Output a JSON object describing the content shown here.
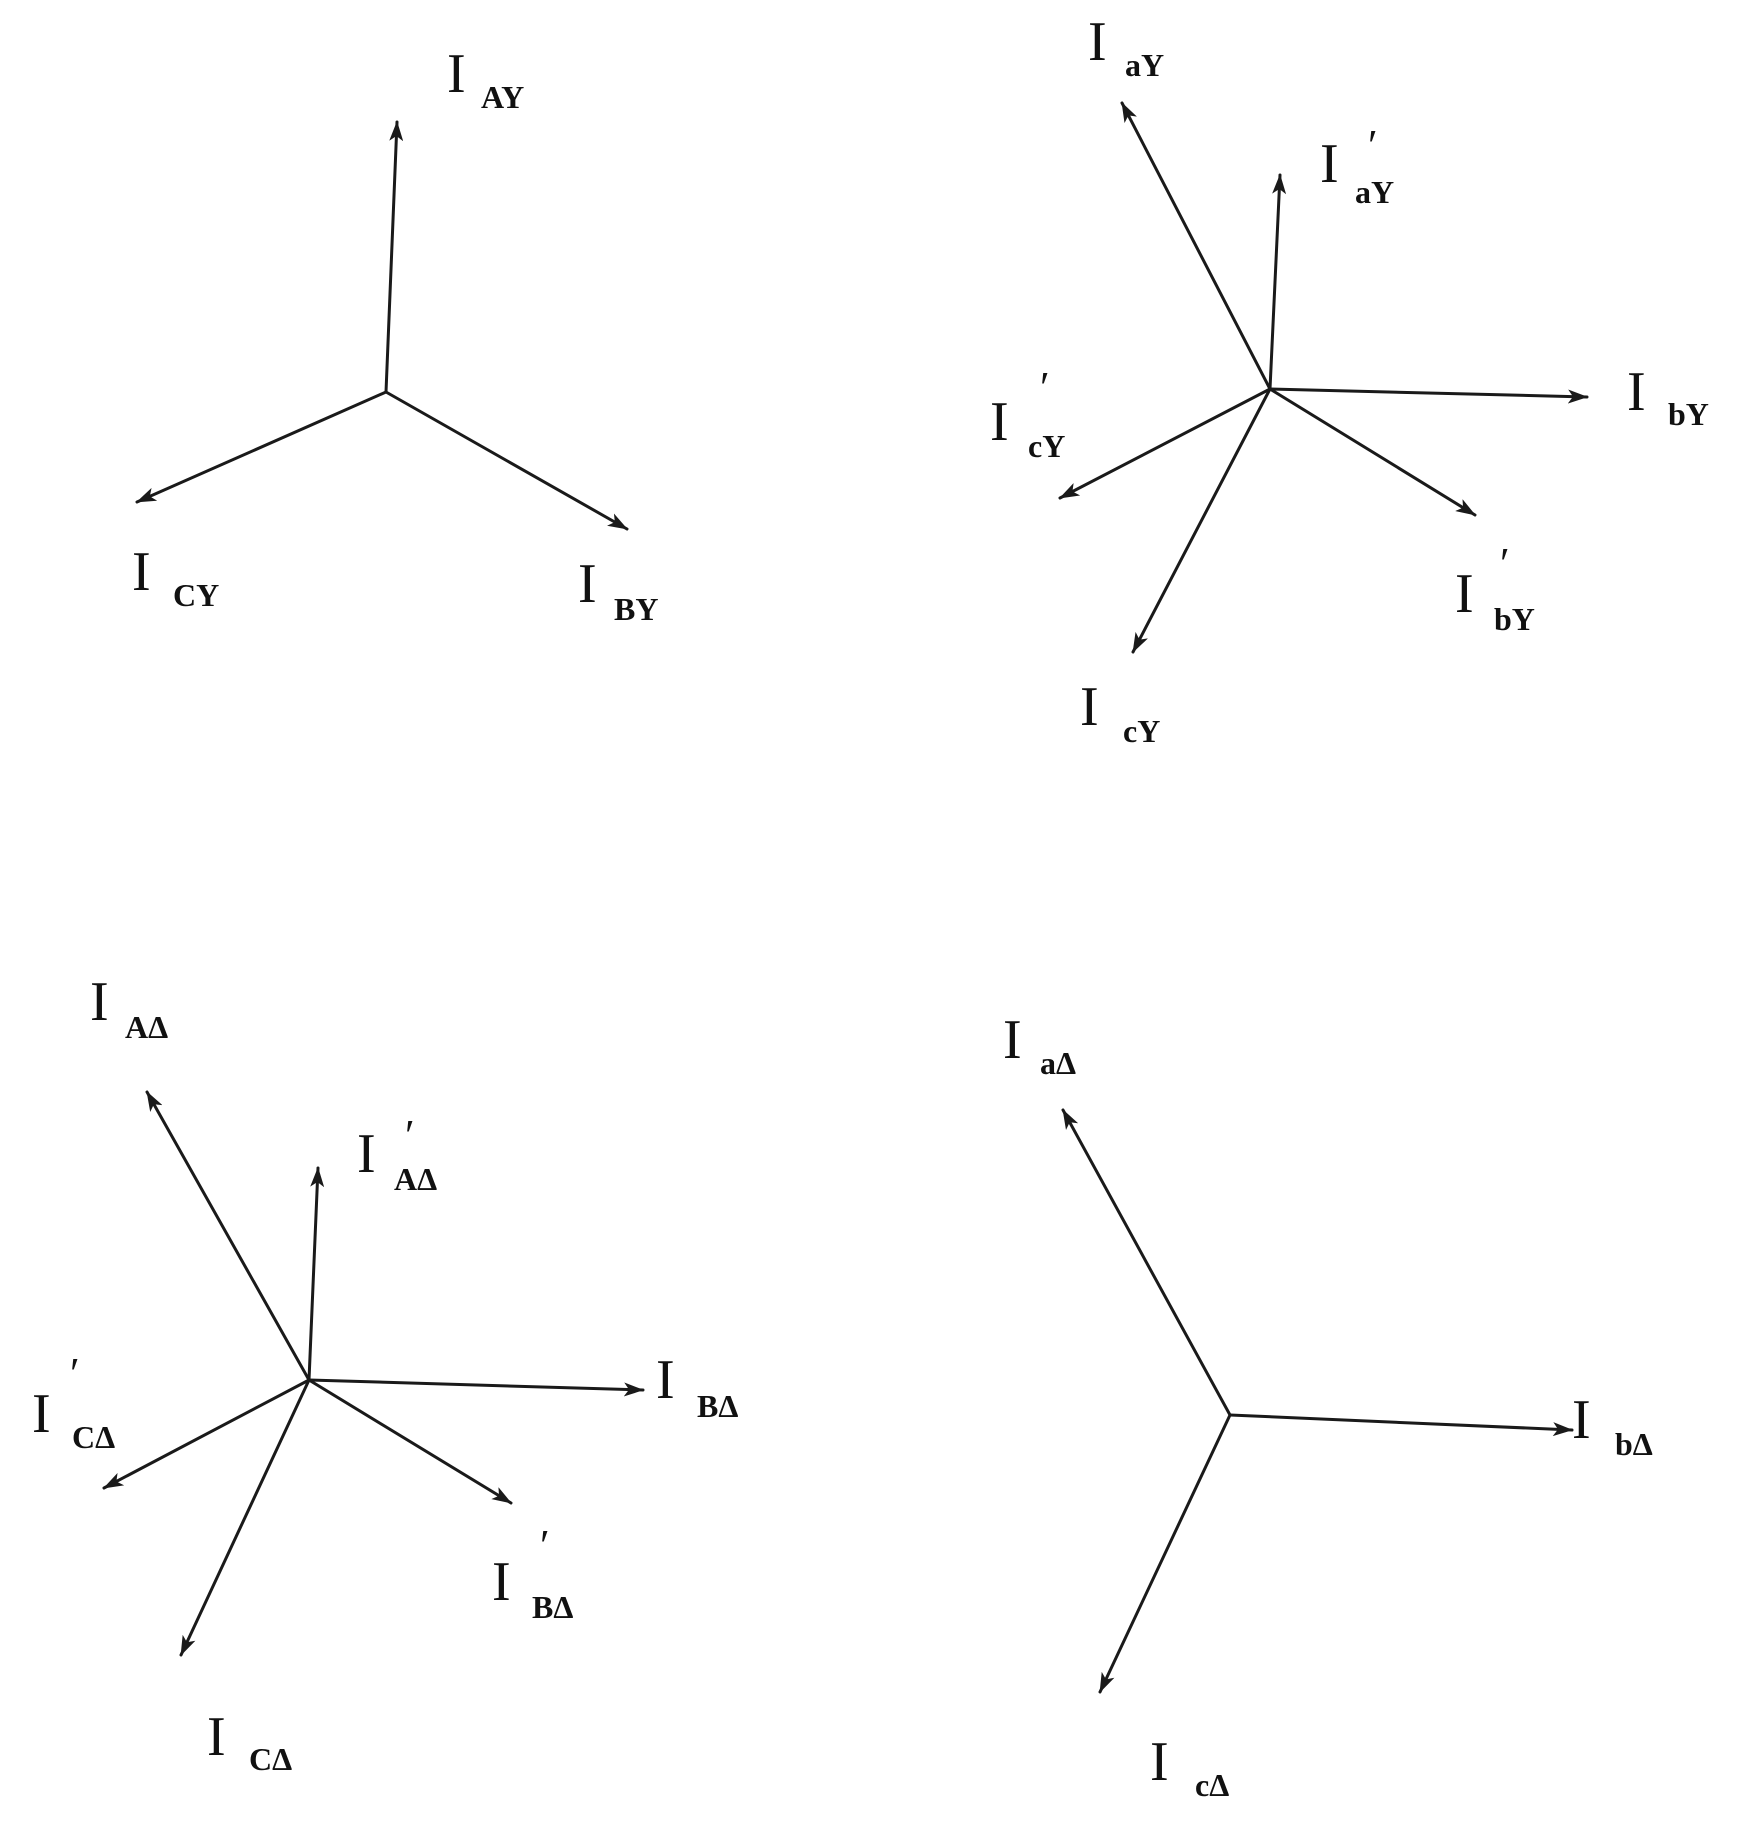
{
  "colors": {
    "ink": "#1a1a1a",
    "background": "#ffffff"
  },
  "diagrams": [
    {
      "name": "primary-wye",
      "phasors": [
        {
          "name": "I-AY",
          "main": "I",
          "sub": "AY",
          "prime": ""
        },
        {
          "name": "I-BY",
          "main": "I",
          "sub": "BY",
          "prime": ""
        },
        {
          "name": "I-CY",
          "main": "I",
          "sub": "CY",
          "prime": ""
        }
      ]
    },
    {
      "name": "secondary-wye",
      "phasors": [
        {
          "name": "I-aY",
          "main": "I",
          "sub": "aY",
          "prime": ""
        },
        {
          "name": "I-aY-prime",
          "main": "I",
          "sub": "aY",
          "prime": "′"
        },
        {
          "name": "I-bY",
          "main": "I",
          "sub": "bY",
          "prime": ""
        },
        {
          "name": "I-bY-prime",
          "main": "I",
          "sub": "bY",
          "prime": "′"
        },
        {
          "name": "I-cY",
          "main": "I",
          "sub": "cY",
          "prime": ""
        },
        {
          "name": "I-cY-prime",
          "main": "I",
          "sub": "cY",
          "prime": "′"
        }
      ]
    },
    {
      "name": "primary-delta",
      "phasors": [
        {
          "name": "I-A-delta",
          "main": "I",
          "sub": "AΔ",
          "prime": ""
        },
        {
          "name": "I-A-delta-prime",
          "main": "I",
          "sub": "AΔ",
          "prime": "′"
        },
        {
          "name": "I-B-delta",
          "main": "I",
          "sub": "BΔ",
          "prime": ""
        },
        {
          "name": "I-B-delta-prime",
          "main": "I",
          "sub": "BΔ",
          "prime": "′"
        },
        {
          "name": "I-C-delta",
          "main": "I",
          "sub": "CΔ",
          "prime": ""
        },
        {
          "name": "I-C-delta-prime",
          "main": "I",
          "sub": "CΔ",
          "prime": "′"
        }
      ]
    },
    {
      "name": "secondary-delta",
      "phasors": [
        {
          "name": "I-a-delta",
          "main": "I",
          "sub": "aΔ",
          "prime": ""
        },
        {
          "name": "I-b-delta",
          "main": "I",
          "sub": "bΔ",
          "prime": ""
        },
        {
          "name": "I-c-delta",
          "main": "I",
          "sub": "cΔ",
          "prime": ""
        }
      ]
    }
  ]
}
